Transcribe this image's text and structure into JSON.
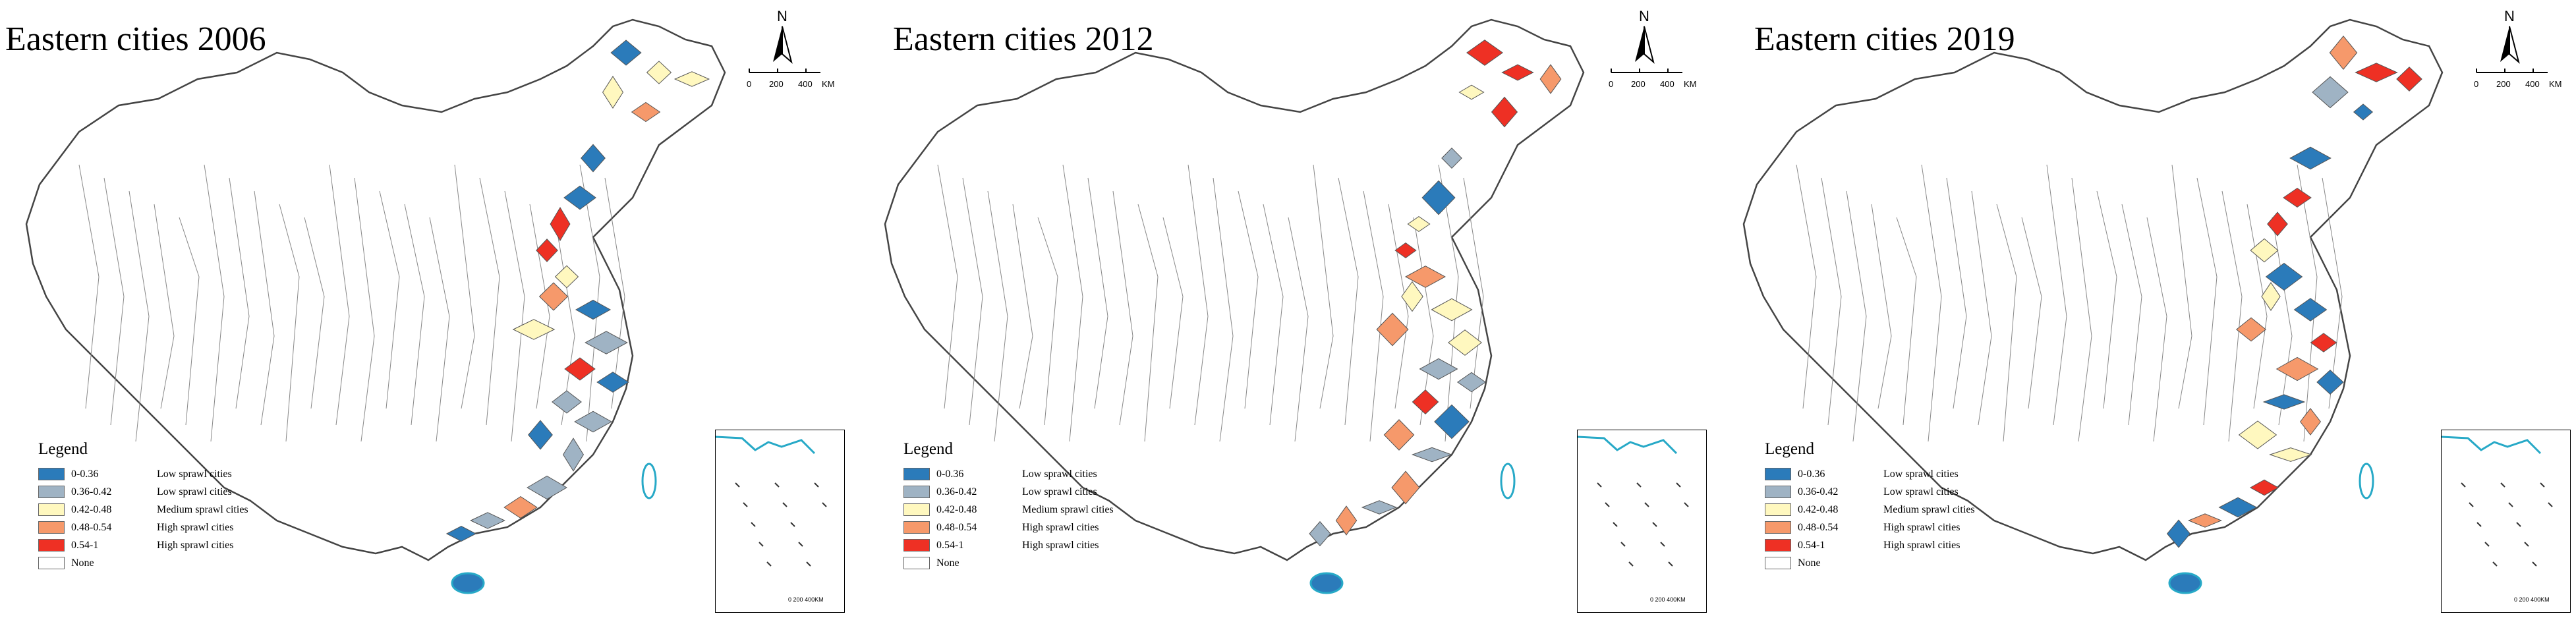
{
  "panels": [
    {
      "title": "Eastern cities 2006"
    },
    {
      "title": "Eastern cities 2012"
    },
    {
      "title": "Eastern cities 2019"
    }
  ],
  "north_arrow": {
    "letter": "N"
  },
  "scale_bar": {
    "labels": [
      "0",
      "200",
      "400",
      "KM"
    ]
  },
  "inset_scale": {
    "labels": [
      "0",
      "200",
      "400KM"
    ]
  },
  "legend": {
    "title": "Legend",
    "items": [
      {
        "range": "0-0.36",
        "label": "Low sprawl cities",
        "color": "#2b7bba"
      },
      {
        "range": "0.36-0.42",
        "label": "Low sprawl cities",
        "color": "#9fb3c4"
      },
      {
        "range": "0.42-0.48",
        "label": "Medium sprawl cities",
        "color": "#fff8bf"
      },
      {
        "range": "0.48-0.54",
        "label": "High sprawl cities",
        "color": "#f6996b"
      },
      {
        "range": "0.54-1",
        "label": "High sprawl cities",
        "color": "#ee3024"
      },
      {
        "range": "None",
        "label": "",
        "color": "#ffffff"
      }
    ]
  },
  "colors": {
    "sea": "#27a9c7",
    "border": "#555555"
  }
}
